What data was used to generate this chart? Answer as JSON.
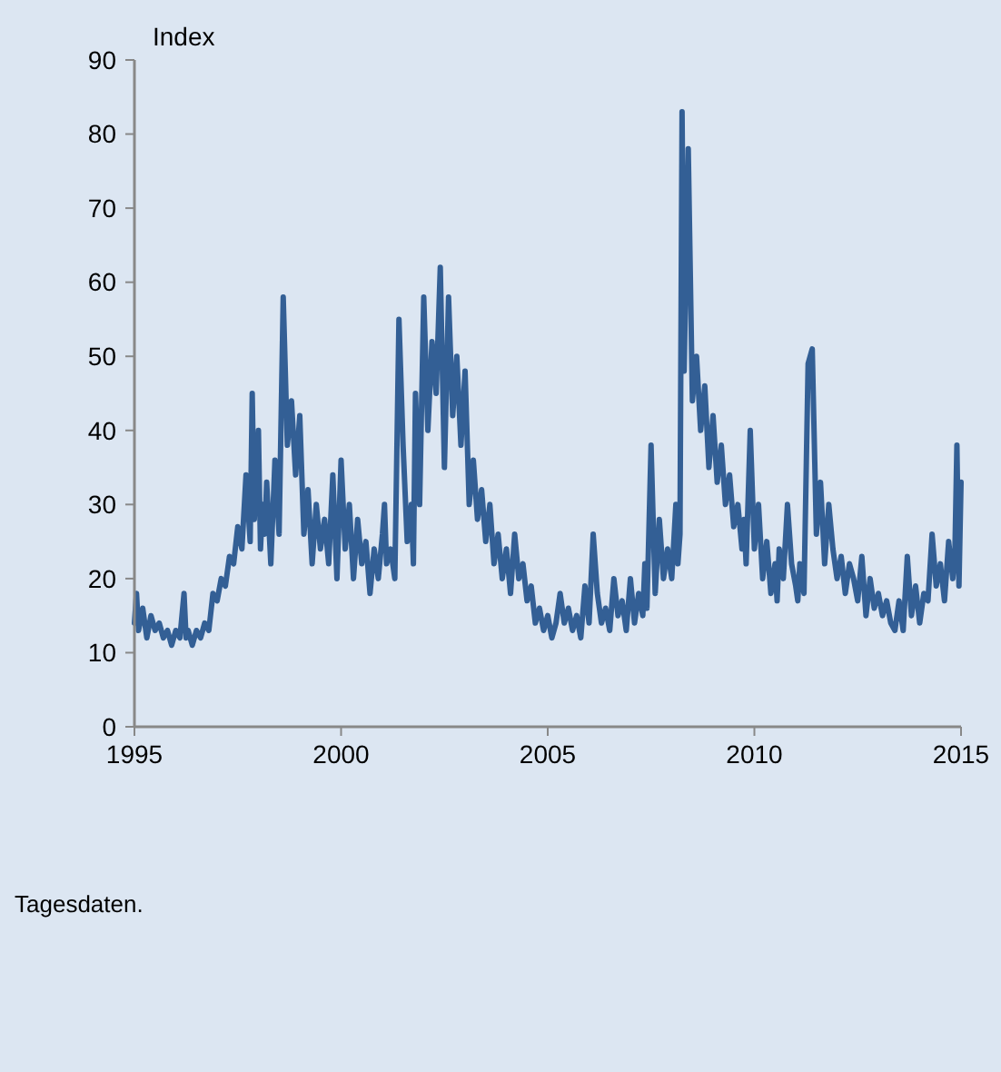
{
  "chart_data": {
    "type": "line",
    "ylabel": "Index",
    "xlim": [
      1995,
      2015
    ],
    "xticks": [
      1995,
      2000,
      2005,
      2010,
      2015
    ],
    "ylim": [
      0,
      90
    ],
    "yticks": [
      0,
      10,
      20,
      30,
      40,
      50,
      60,
      70,
      80,
      90
    ],
    "grid": false,
    "line_style": "solid",
    "annotations": [
      "Tagesdaten."
    ],
    "series": [
      {
        "color": "#335f95",
        "x": [
          1995.0,
          1995.05,
          1995.1,
          1995.2,
          1995.3,
          1995.4,
          1995.5,
          1995.6,
          1995.7,
          1995.8,
          1995.9,
          1996.0,
          1996.1,
          1996.2,
          1996.25,
          1996.3,
          1996.4,
          1996.5,
          1996.6,
          1996.7,
          1996.8,
          1996.9,
          1997.0,
          1997.1,
          1997.2,
          1997.3,
          1997.4,
          1997.5,
          1997.6,
          1997.7,
          1997.8,
          1997.85,
          1997.9,
          1998.0,
          1998.05,
          1998.1,
          1998.15,
          1998.2,
          1998.3,
          1998.4,
          1998.5,
          1998.6,
          1998.7,
          1998.8,
          1998.9,
          1999.0,
          1999.1,
          1999.2,
          1999.3,
          1999.4,
          1999.5,
          1999.6,
          1999.7,
          1999.8,
          1999.9,
          2000.0,
          2000.1,
          2000.2,
          2000.3,
          2000.4,
          2000.5,
          2000.6,
          2000.7,
          2000.8,
          2000.9,
          2001.0,
          2001.05,
          2001.1,
          2001.2,
          2001.3,
          2001.4,
          2001.5,
          2001.6,
          2001.7,
          2001.75,
          2001.8,
          2001.9,
          2002.0,
          2002.1,
          2002.2,
          2002.3,
          2002.4,
          2002.5,
          2002.6,
          2002.7,
          2002.8,
          2002.9,
          2003.0,
          2003.1,
          2003.2,
          2003.3,
          2003.4,
          2003.5,
          2003.6,
          2003.7,
          2003.8,
          2003.9,
          2004.0,
          2004.1,
          2004.2,
          2004.3,
          2004.4,
          2004.5,
          2004.6,
          2004.7,
          2004.8,
          2004.9,
          2005.0,
          2005.1,
          2005.2,
          2005.3,
          2005.4,
          2005.5,
          2005.6,
          2005.7,
          2005.8,
          2005.9,
          2006.0,
          2006.1,
          2006.2,
          2006.3,
          2006.4,
          2006.5,
          2006.6,
          2006.7,
          2006.8,
          2006.9,
          2007.0,
          2007.1,
          2007.2,
          2007.3,
          2007.35,
          2007.4,
          2007.5,
          2007.6,
          2007.7,
          2007.8,
          2007.9,
          2008.0,
          2008.1,
          2008.15,
          2008.2,
          2008.25,
          2008.3,
          2008.4,
          2008.5,
          2008.6,
          2008.7,
          2008.8,
          2008.9,
          2009.0,
          2009.1,
          2009.2,
          2009.3,
          2009.4,
          2009.5,
          2009.6,
          2009.7,
          2009.75,
          2009.8,
          2009.9,
          2010.0,
          2010.1,
          2010.2,
          2010.3,
          2010.4,
          2010.5,
          2010.55,
          2010.6,
          2010.7,
          2010.8,
          2010.9,
          2011.0,
          2011.05,
          2011.1,
          2011.2,
          2011.3,
          2011.4,
          2011.5,
          2011.6,
          2011.7,
          2011.8,
          2011.9,
          2012.0,
          2012.1,
          2012.2,
          2012.3,
          2012.4,
          2012.5,
          2012.6,
          2012.7,
          2012.8,
          2012.9,
          2013.0,
          2013.1,
          2013.2,
          2013.3,
          2013.4,
          2013.5,
          2013.6,
          2013.7,
          2013.8,
          2013.9,
          2014.0,
          2014.1,
          2014.2,
          2014.3,
          2014.4,
          2014.5,
          2014.6,
          2014.7,
          2014.8,
          2014.85,
          2014.9,
          2014.95,
          2015.0
        ],
        "values": [
          14,
          18,
          13,
          16,
          12,
          15,
          13,
          14,
          12,
          13,
          11,
          13,
          12,
          18,
          12,
          13,
          11,
          13,
          12,
          14,
          13,
          18,
          17,
          20,
          19,
          23,
          22,
          27,
          24,
          34,
          25,
          45,
          28,
          40,
          24,
          30,
          26,
          33,
          22,
          36,
          26,
          58,
          38,
          44,
          34,
          42,
          26,
          32,
          22,
          30,
          24,
          28,
          22,
          34,
          20,
          36,
          24,
          30,
          20,
          28,
          22,
          25,
          18,
          24,
          20,
          26,
          30,
          22,
          24,
          20,
          55,
          38,
          25,
          30,
          22,
          45,
          30,
          58,
          40,
          52,
          45,
          62,
          35,
          58,
          42,
          50,
          38,
          48,
          30,
          36,
          28,
          32,
          25,
          30,
          22,
          26,
          20,
          24,
          18,
          26,
          20,
          22,
          17,
          19,
          14,
          16,
          13,
          15,
          12,
          14,
          18,
          14,
          16,
          13,
          15,
          12,
          19,
          14,
          26,
          18,
          14,
          16,
          13,
          20,
          15,
          17,
          13,
          20,
          14,
          18,
          15,
          22,
          16,
          38,
          18,
          28,
          20,
          24,
          20,
          30,
          22,
          26,
          83,
          48,
          78,
          44,
          50,
          40,
          46,
          35,
          42,
          33,
          38,
          30,
          34,
          27,
          30,
          24,
          28,
          22,
          40,
          24,
          30,
          20,
          25,
          18,
          22,
          17,
          24,
          20,
          30,
          22,
          19,
          17,
          22,
          18,
          49,
          51,
          26,
          33,
          22,
          30,
          24,
          20,
          23,
          18,
          22,
          20,
          17,
          23,
          15,
          20,
          16,
          18,
          15,
          17,
          14,
          13,
          17,
          13,
          23,
          15,
          19,
          14,
          18,
          17,
          26,
          19,
          22,
          17,
          25,
          20,
          23,
          38,
          19,
          33
        ]
      }
    ]
  }
}
